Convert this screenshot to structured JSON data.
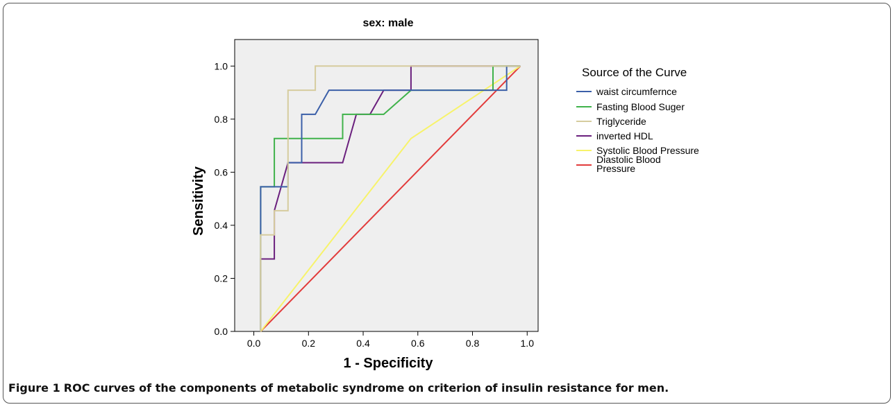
{
  "figure": {
    "caption_label": "Figure 1",
    "caption_text": "ROC curves of the components of metabolic syndrome on criterion of insulin resistance for men."
  },
  "chart_data": {
    "type": "line",
    "title": "sex: male",
    "xlabel": "1 - Specificity",
    "ylabel": "Sensitivity",
    "xlim": [
      -0.07,
      1.04
    ],
    "ylim": [
      0.0,
      1.1
    ],
    "xticks": [
      0.0,
      0.2,
      0.4,
      0.6,
      0.8,
      1.0
    ],
    "xtick_labels": [
      "0.0",
      "0.2",
      "0.4",
      "0.6",
      "0.8",
      "1.0"
    ],
    "yticks": [
      0.0,
      0.2,
      0.4,
      0.6,
      0.8,
      1.0
    ],
    "ytick_labels": [
      "0.0",
      "0.2",
      "0.4",
      "0.6",
      "0.8",
      "1.0"
    ],
    "grid": false,
    "plot_background": "#efefef",
    "legend_title": "Source of the Curve",
    "legend_position": "right",
    "series": [
      {
        "name": "waist circumfernce",
        "color": "#3b5fa8",
        "x": [
          0.025,
          0.025,
          0.125,
          0.125,
          0.175,
          0.175,
          0.225,
          0.275,
          0.875,
          0.925,
          0.925,
          0.975
        ],
        "y": [
          0.0,
          0.545,
          0.545,
          0.636,
          0.636,
          0.818,
          0.818,
          0.909,
          0.909,
          0.909,
          1.0,
          1.0
        ]
      },
      {
        "name": "Fasting Blood Suger",
        "color": "#3fb24a",
        "x": [
          0.025,
          0.025,
          0.075,
          0.075,
          0.325,
          0.325,
          0.425,
          0.475,
          0.575,
          0.875,
          0.875,
          0.975
        ],
        "y": [
          0.0,
          0.545,
          0.545,
          0.727,
          0.727,
          0.818,
          0.818,
          0.818,
          0.909,
          0.909,
          1.0,
          1.0
        ]
      },
      {
        "name": "Triglyceride",
        "color": "#d6cc9e",
        "x": [
          0.025,
          0.025,
          0.075,
          0.075,
          0.125,
          0.125,
          0.225,
          0.225,
          0.975
        ],
        "y": [
          0.0,
          0.364,
          0.364,
          0.455,
          0.455,
          0.909,
          0.909,
          1.0,
          1.0
        ]
      },
      {
        "name": "inverted HDL",
        "color": "#6a1f7d",
        "x": [
          0.025,
          0.025,
          0.075,
          0.075,
          0.125,
          0.225,
          0.325,
          0.375,
          0.425,
          0.475,
          0.575,
          0.575,
          0.975
        ],
        "y": [
          0.0,
          0.273,
          0.273,
          0.455,
          0.636,
          0.636,
          0.636,
          0.818,
          0.818,
          0.909,
          0.909,
          1.0,
          1.0
        ]
      },
      {
        "name": "Systolic Blood Pressure",
        "color": "#f7f36a",
        "x": [
          0.025,
          0.575,
          0.975
        ],
        "y": [
          0.0,
          0.727,
          1.0
        ]
      },
      {
        "name": "Diastolic Blood Pressure",
        "color": "#e23b3b",
        "x": [
          0.025,
          0.975
        ],
        "y": [
          0.0,
          1.0
        ]
      }
    ]
  }
}
